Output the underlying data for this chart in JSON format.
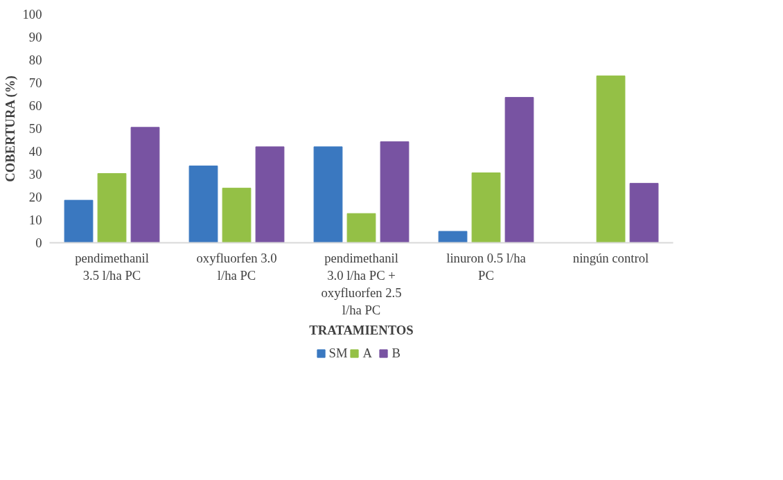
{
  "chart_data": {
    "type": "bar",
    "xlabel": "TRATAMIENTOS",
    "ylabel": "COBERTURA (%)",
    "categories": [
      "pendimethanil 3.5 l/ha PC",
      "oxyfluorfen 3.0 l/ha PC",
      "pendimethanil 3.0 l/ha PC + oxyfluorfen 2.5 l/ha PC",
      "linuron 0.5 l/ha PC",
      "ningún control"
    ],
    "series": [
      {
        "name": "SM",
        "color": "#3a78c0",
        "values": [
          18.6,
          33.6,
          42,
          5,
          null
        ]
      },
      {
        "name": "A",
        "color": "#94c046",
        "values": [
          30.3,
          23.9,
          12.8,
          30.6,
          73
        ]
      },
      {
        "name": "B",
        "color": "#7853a2",
        "values": [
          50.5,
          42,
          44.2,
          63.6,
          26
        ]
      }
    ],
    "ylim": [
      0,
      100
    ],
    "yticks": [
      0,
      10,
      20,
      30,
      40,
      50,
      60,
      70,
      80,
      90,
      100
    ],
    "grid": false,
    "legend": "bottom"
  }
}
